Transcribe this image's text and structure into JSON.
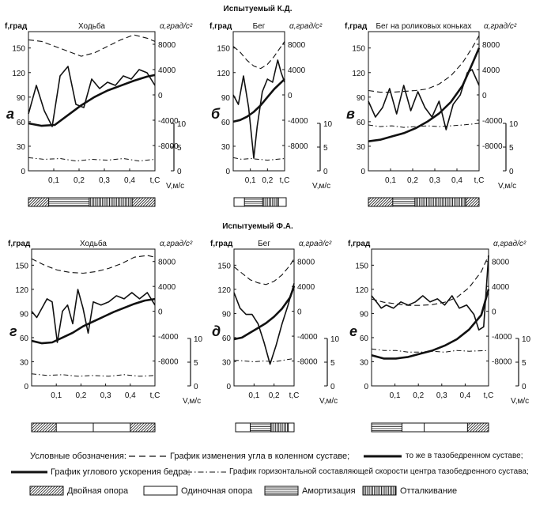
{
  "subjects": [
    "Испытуемый К.Д.",
    "Испытуемый Ф.А."
  ],
  "chart_data": [
    {
      "type": "line",
      "title": "Ходьба",
      "letter": "а",
      "xlabel": "t,С",
      "ylabel_left": "f,град",
      "ylabel_right": "α,град/с²",
      "speed_label": "V,м/с",
      "x_ticks": [
        "0,1",
        "0,2",
        "0,3",
        "0,4",
        "t,С"
      ],
      "y_left_ticks": [
        "0",
        "30",
        "60",
        "90",
        "120",
        "150"
      ],
      "y_right_ticks": [
        "-8000",
        "-4000",
        "0",
        "4000",
        "8000"
      ],
      "speed_ticks": [
        "0",
        "5",
        "10"
      ],
      "ylim_left": [
        0,
        170
      ],
      "ylim_right": [
        -12000,
        10000
      ],
      "xlim": [
        0,
        0.48
      ],
      "series": [
        {
          "style": "dashed",
          "x": [
            0,
            0.05,
            0.1,
            0.15,
            0.2,
            0.25,
            0.3,
            0.35,
            0.4,
            0.45,
            0.48
          ],
          "y": [
            160,
            158,
            152,
            146,
            140,
            144,
            152,
            160,
            166,
            162,
            158
          ]
        },
        {
          "style": "thick",
          "x": [
            0,
            0.05,
            0.1,
            0.15,
            0.2,
            0.25,
            0.3,
            0.35,
            0.4,
            0.45,
            0.48
          ],
          "y": [
            58,
            55,
            56,
            68,
            80,
            90,
            98,
            104,
            110,
            115,
            117
          ]
        },
        {
          "style": "thin",
          "x": [
            0,
            0.03,
            0.06,
            0.09,
            0.12,
            0.15,
            0.18,
            0.21,
            0.24,
            0.27,
            0.3,
            0.33,
            0.36,
            0.39,
            0.42,
            0.45,
            0.48
          ],
          "axis": "right",
          "y": [
            -3000,
            1500,
            -2500,
            -5000,
            3000,
            4500,
            -1500,
            -2000,
            2500,
            1000,
            2000,
            1500,
            3000,
            2500,
            4000,
            3500,
            1500
          ]
        },
        {
          "style": "dashdot",
          "x": [
            0,
            0.06,
            0.12,
            0.18,
            0.24,
            0.3,
            0.36,
            0.42,
            0.48
          ],
          "y": [
            16,
            14,
            15,
            12,
            14,
            13,
            15,
            12,
            14
          ]
        }
      ]
    },
    {
      "type": "line",
      "title": "Бег",
      "letter": "б",
      "xlabel": "t,С",
      "ylabel_left": "f,град",
      "ylabel_right": "α,град/с²",
      "speed_label": "V,м/с",
      "x_ticks": [
        "0,1",
        "0,2",
        "t,С"
      ],
      "y_left_ticks": [
        "0",
        "30",
        "60",
        "90",
        "120",
        "150"
      ],
      "y_right_ticks": [
        "-8000",
        "-4000",
        "0",
        "4000",
        "8000"
      ],
      "speed_ticks": [
        "0",
        "5",
        "10"
      ],
      "ylim_left": [
        0,
        170
      ],
      "ylim_right": [
        -12000,
        10000
      ],
      "xlim": [
        0,
        0.3
      ],
      "series": [
        {
          "style": "dashed",
          "x": [
            0,
            0.04,
            0.08,
            0.12,
            0.16,
            0.2,
            0.24,
            0.28,
            0.3
          ],
          "y": [
            152,
            145,
            135,
            128,
            125,
            130,
            140,
            152,
            158
          ]
        },
        {
          "style": "thick",
          "x": [
            0,
            0.04,
            0.08,
            0.12,
            0.16,
            0.2,
            0.24,
            0.28,
            0.3
          ],
          "y": [
            60,
            62,
            66,
            72,
            80,
            90,
            100,
            108,
            112
          ]
        },
        {
          "style": "thin",
          "axis": "right",
          "x": [
            0,
            0.03,
            0.06,
            0.09,
            0.12,
            0.14,
            0.17,
            0.2,
            0.23,
            0.26,
            0.28,
            0.3
          ],
          "y": [
            0,
            -1500,
            3000,
            -2000,
            -10000,
            -5000,
            500,
            2500,
            2000,
            5500,
            3500,
            2000
          ]
        },
        {
          "style": "dashdot",
          "x": [
            0,
            0.05,
            0.1,
            0.15,
            0.2,
            0.25,
            0.3
          ],
          "y": [
            16,
            14,
            15,
            14,
            13,
            14,
            15
          ]
        }
      ]
    },
    {
      "type": "line",
      "title": "Бег на роликовых коньках",
      "letter": "в",
      "xlabel": "t,С",
      "ylabel_left": "f,град",
      "ylabel_right": "α,град/с²",
      "speed_label": "V,м/с",
      "x_ticks": [
        "0,1",
        "0,2",
        "0,3",
        "0,4",
        "t,С"
      ],
      "y_left_ticks": [
        "0",
        "30",
        "60",
        "90",
        "120",
        "150"
      ],
      "y_right_ticks": [
        "-8000",
        "-4000",
        "0",
        "4000",
        "8000"
      ],
      "speed_ticks": [
        "0",
        "5",
        "10"
      ],
      "ylim_left": [
        0,
        170
      ],
      "ylim_right": [
        -12000,
        10000
      ],
      "xlim": [
        0,
        0.47
      ],
      "series": [
        {
          "style": "dashed",
          "x": [
            0,
            0.05,
            0.1,
            0.15,
            0.2,
            0.25,
            0.3,
            0.35,
            0.4,
            0.44,
            0.47
          ],
          "y": [
            98,
            96,
            96,
            97,
            98,
            100,
            106,
            116,
            132,
            150,
            165
          ]
        },
        {
          "style": "thick",
          "x": [
            0,
            0.05,
            0.1,
            0.15,
            0.2,
            0.25,
            0.3,
            0.35,
            0.4,
            0.44,
            0.47
          ],
          "y": [
            36,
            38,
            42,
            46,
            52,
            60,
            70,
            84,
            104,
            130,
            150
          ]
        },
        {
          "style": "thin",
          "axis": "right",
          "x": [
            0,
            0.03,
            0.06,
            0.09,
            0.12,
            0.15,
            0.18,
            0.21,
            0.24,
            0.27,
            0.3,
            0.33,
            0.36,
            0.39,
            0.42,
            0.44,
            0.47
          ],
          "y": [
            -1000,
            -3500,
            -2000,
            1000,
            -3000,
            1500,
            -2500,
            500,
            -2000,
            -3500,
            -1000,
            -5500,
            -1500,
            0,
            3500,
            4000,
            1500
          ]
        },
        {
          "style": "dashdot",
          "x": [
            0,
            0.05,
            0.1,
            0.15,
            0.2,
            0.25,
            0.3,
            0.35,
            0.4,
            0.47
          ],
          "y": [
            56,
            54,
            55,
            53,
            54,
            55,
            54,
            55,
            56,
            58
          ]
        }
      ]
    },
    {
      "type": "line",
      "title": "Ходьба",
      "letter": "г",
      "xlabel": "t,С",
      "ylabel_left": "f,град",
      "ylabel_right": "α,град/с²",
      "speed_label": "V,м/с",
      "x_ticks": [
        "0,1",
        "0,2",
        "0,3",
        "0,4",
        "t,С"
      ],
      "y_left_ticks": [
        "0",
        "30",
        "60",
        "90",
        "120",
        "150"
      ],
      "y_right_ticks": [
        "-8000",
        "-4000",
        "0",
        "4000",
        "8000"
      ],
      "speed_ticks": [
        "0",
        "5",
        "10"
      ],
      "ylim_left": [
        0,
        170
      ],
      "ylim_right": [
        -12000,
        10000
      ],
      "xlim": [
        0,
        0.48
      ],
      "series": [
        {
          "style": "dashed",
          "x": [
            0,
            0.05,
            0.1,
            0.15,
            0.2,
            0.25,
            0.3,
            0.35,
            0.4,
            0.45,
            0.48
          ],
          "y": [
            158,
            150,
            144,
            141,
            140,
            142,
            146,
            152,
            160,
            162,
            160
          ]
        },
        {
          "style": "thick",
          "x": [
            0,
            0.04,
            0.08,
            0.12,
            0.16,
            0.2,
            0.24,
            0.28,
            0.32,
            0.36,
            0.4,
            0.44,
            0.48
          ],
          "y": [
            56,
            53,
            54,
            60,
            66,
            74,
            80,
            86,
            92,
            97,
            102,
            106,
            108
          ]
        },
        {
          "style": "thin",
          "axis": "right",
          "x": [
            0,
            0.02,
            0.04,
            0.06,
            0.08,
            0.1,
            0.12,
            0.14,
            0.16,
            0.18,
            0.2,
            0.22,
            0.24,
            0.27,
            0.3,
            0.33,
            0.36,
            0.39,
            0.42,
            0.45,
            0.48
          ],
          "y": [
            0,
            -1000,
            500,
            2000,
            1500,
            -5000,
            0,
            1000,
            -2000,
            3500,
            500,
            -3500,
            1500,
            1000,
            1500,
            2500,
            2000,
            3000,
            2000,
            3000,
            1000
          ]
        },
        {
          "style": "dashdot",
          "x": [
            0,
            0.06,
            0.12,
            0.18,
            0.24,
            0.3,
            0.36,
            0.42,
            0.48
          ],
          "y": [
            15,
            13,
            14,
            12,
            13,
            12,
            14,
            12,
            13
          ]
        }
      ]
    },
    {
      "type": "line",
      "title": "Бег",
      "letter": "д",
      "xlabel": "t,С",
      "ylabel_left": "f,град",
      "ylabel_right": "α,град/с²",
      "speed_label": "V,м/с",
      "x_ticks": [
        "0,1",
        "0,2",
        "t,С"
      ],
      "y_left_ticks": [
        "0",
        "30",
        "60",
        "90",
        "120",
        "150"
      ],
      "y_right_ticks": [
        "-8000",
        "-4000",
        "0",
        "4000",
        "8000"
      ],
      "speed_ticks": [
        "0",
        "5",
        "10"
      ],
      "ylim_left": [
        0,
        170
      ],
      "ylim_right": [
        -12000,
        10000
      ],
      "xlim": [
        0,
        0.3
      ],
      "series": [
        {
          "style": "dashed",
          "x": [
            0,
            0.04,
            0.08,
            0.12,
            0.16,
            0.2,
            0.24,
            0.28,
            0.3
          ],
          "y": [
            148,
            140,
            132,
            128,
            126,
            130,
            138,
            150,
            158
          ]
        },
        {
          "style": "thick",
          "x": [
            0,
            0.04,
            0.08,
            0.12,
            0.16,
            0.2,
            0.24,
            0.28,
            0.3
          ],
          "y": [
            58,
            60,
            66,
            72,
            78,
            86,
            96,
            110,
            124
          ]
        },
        {
          "style": "thin",
          "axis": "right",
          "x": [
            0,
            0.03,
            0.06,
            0.09,
            0.12,
            0.15,
            0.18,
            0.21,
            0.24,
            0.27,
            0.3
          ],
          "y": [
            3000,
            500,
            -500,
            -500,
            -2000,
            -5000,
            -8500,
            -5500,
            -2000,
            1000,
            4500
          ]
        },
        {
          "style": "dashdot",
          "x": [
            0,
            0.05,
            0.1,
            0.15,
            0.2,
            0.25,
            0.3
          ],
          "y": [
            32,
            31,
            30,
            31,
            30,
            32,
            34
          ]
        }
      ]
    },
    {
      "type": "line",
      "title": "",
      "letter": "е",
      "xlabel": "t,С",
      "ylabel_left": "f,град",
      "ylabel_right": "α,град/с²",
      "speed_label": "V,м/с",
      "x_ticks": [
        "0,1",
        "0,2",
        "0,3",
        "0,4",
        "t,С"
      ],
      "y_left_ticks": [
        "0",
        "30",
        "60",
        "90",
        "120",
        "150"
      ],
      "y_right_ticks": [
        "-8000",
        "-4000",
        "0",
        "4000",
        "8000"
      ],
      "speed_ticks": [
        "0",
        "5",
        "10"
      ],
      "ylim_left": [
        0,
        170
      ],
      "ylim_right": [
        -12000,
        10000
      ],
      "xlim": [
        0,
        0.48
      ],
      "series": [
        {
          "style": "dashed",
          "x": [
            0,
            0.05,
            0.1,
            0.15,
            0.2,
            0.25,
            0.3,
            0.35,
            0.4,
            0.45,
            0.48
          ],
          "y": [
            108,
            104,
            102,
            100,
            100,
            101,
            104,
            110,
            122,
            142,
            162
          ]
        },
        {
          "style": "thick",
          "x": [
            0,
            0.05,
            0.1,
            0.15,
            0.2,
            0.25,
            0.3,
            0.35,
            0.4,
            0.45,
            0.48
          ],
          "y": [
            38,
            34,
            34,
            36,
            40,
            44,
            50,
            58,
            70,
            88,
            120
          ]
        },
        {
          "style": "thin",
          "axis": "right",
          "x": [
            0,
            0.02,
            0.04,
            0.06,
            0.09,
            0.12,
            0.15,
            0.18,
            0.21,
            0.24,
            0.27,
            0.3,
            0.33,
            0.36,
            0.39,
            0.42,
            0.44,
            0.46,
            0.48
          ],
          "y": [
            2500,
            1500,
            500,
            1000,
            500,
            1500,
            1000,
            1500,
            2500,
            1500,
            2000,
            1000,
            2500,
            500,
            1000,
            -500,
            -3000,
            -2500,
            9000
          ]
        },
        {
          "style": "dashdot",
          "x": [
            0,
            0.05,
            0.1,
            0.15,
            0.2,
            0.25,
            0.3,
            0.35,
            0.4,
            0.48
          ],
          "y": [
            46,
            44,
            44,
            42,
            42,
            43,
            42,
            44,
            43,
            44
          ]
        }
      ]
    }
  ],
  "legend": {
    "heading": "Условные обозначения:",
    "knee_label": "График изменения угла в коленном суставе;",
    "hip_label": "то же в тазобедренном суставе;",
    "accel_label": "График углового ускорения бедра;",
    "speed_label": "График горизонтальной составляющей скорости центра тазобедренного сустава;",
    "double_support": "Двойная опора",
    "single_support": "Одиночная опора",
    "cushioning": "Амортизация",
    "push_off": "Отталкивание"
  }
}
